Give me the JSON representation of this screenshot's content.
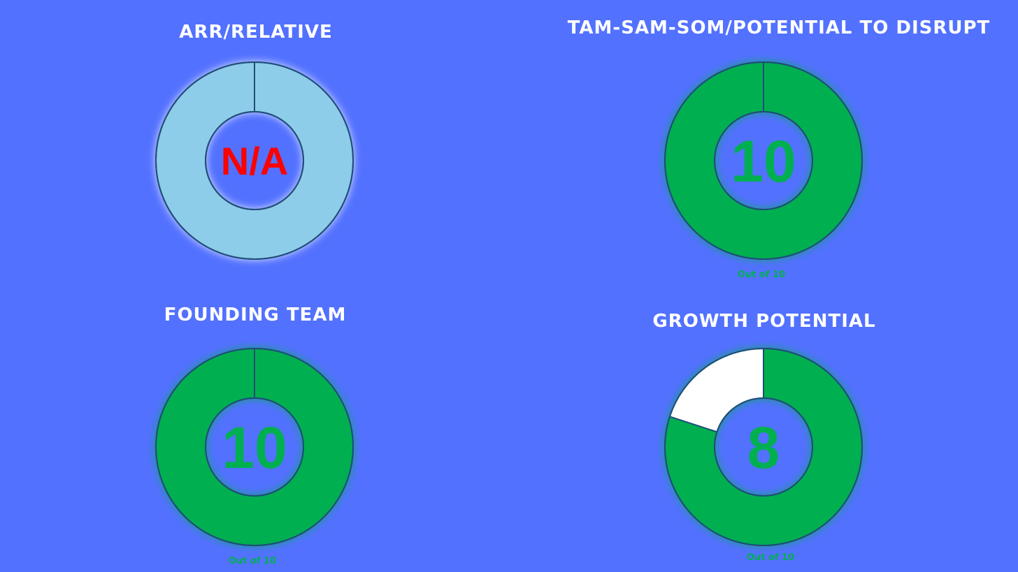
{
  "chart_data": [
    {
      "type": "pie",
      "title": "ARR/RELATIVE",
      "center_label": "N/A",
      "value": null,
      "max": 10,
      "subtitle": "",
      "colors": {
        "fill": "#8ecde9",
        "empty": "#8ecde9",
        "text": "#ff0000",
        "glow": "#ffffff"
      }
    },
    {
      "type": "pie",
      "title": "TAM-SAM-SOM/POTENTIAL TO DISRUPT",
      "center_label": "10",
      "value": 10,
      "max": 10,
      "subtitle": "Out of 10",
      "colors": {
        "fill": "#00b050",
        "empty": "#ffffff",
        "text": "#00b050",
        "glow": "#00b050"
      }
    },
    {
      "type": "pie",
      "title": "FOUNDING TEAM",
      "center_label": "10",
      "value": 10,
      "max": 10,
      "subtitle": "Out of 10",
      "colors": {
        "fill": "#00b050",
        "empty": "#ffffff",
        "text": "#00b050",
        "glow": "#00b050"
      }
    },
    {
      "type": "pie",
      "title": "GROWTH POTENTIAL",
      "center_label": "8",
      "value": 8,
      "max": 10,
      "subtitle": "Out of 10",
      "colors": {
        "fill": "#00b050",
        "empty": "#ffffff",
        "text": "#00b050",
        "glow": "#00b050"
      }
    }
  ],
  "colors": {
    "background": "#5271ff",
    "outline": "#1f4e79",
    "title": "#ffffff"
  }
}
